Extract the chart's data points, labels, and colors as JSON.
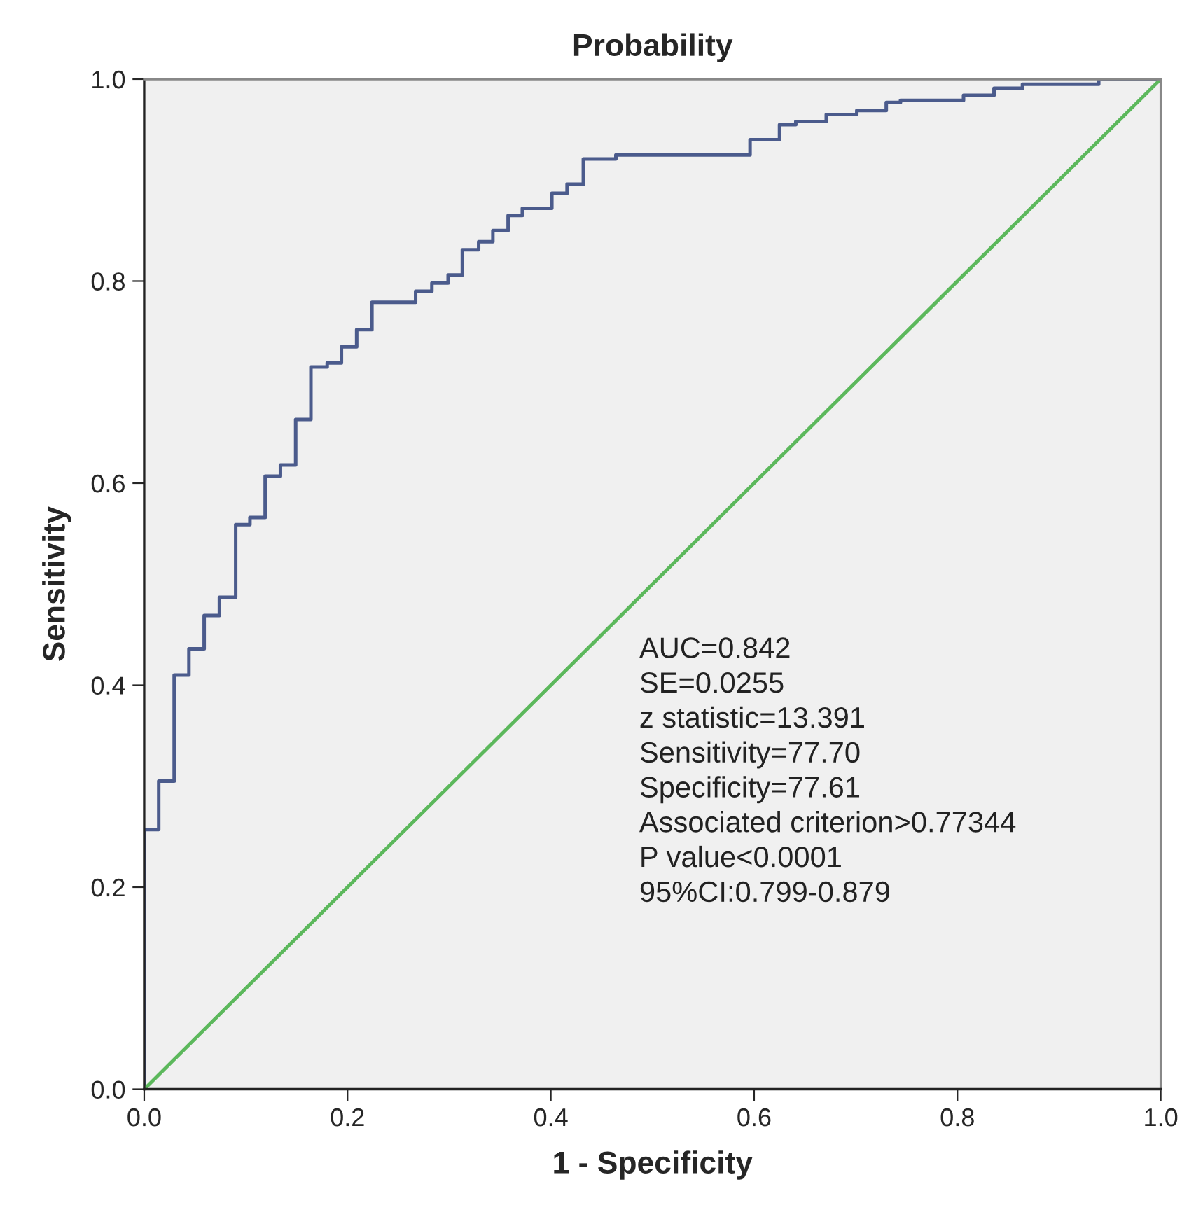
{
  "chart_data": {
    "type": "step",
    "title": "Probability",
    "xlabel": "1 - Specificity",
    "ylabel": "Sensitivity",
    "series": [
      {
        "color": "#4b5b8c",
        "x": [
          0,
          0,
          0.0143,
          0.0295,
          0.044,
          0.059,
          0.074,
          0.09,
          0.104,
          0.119,
          0.134,
          0.149,
          0.164,
          0.18,
          0.194,
          0.209,
          0.224,
          0.267,
          0.283,
          0.299,
          0.313,
          0.329,
          0.343,
          0.358,
          0.372,
          0.401,
          0.416,
          0.432,
          0.464,
          0.596,
          0.625,
          0.641,
          0.671,
          0.701,
          0.73,
          0.744,
          0.806,
          0.836,
          0.864,
          0.939,
          1.0
        ],
        "values": [
          0,
          0.257,
          0.305,
          0.41,
          0.436,
          0.469,
          0.487,
          0.559,
          0.566,
          0.607,
          0.618,
          0.663,
          0.715,
          0.719,
          0.735,
          0.752,
          0.779,
          0.79,
          0.798,
          0.806,
          0.831,
          0.839,
          0.85,
          0.865,
          0.872,
          0.887,
          0.896,
          0.921,
          0.925,
          0.94,
          0.955,
          0.958,
          0.965,
          0.969,
          0.977,
          0.979,
          0.984,
          0.991,
          0.995,
          1.0,
          1.0
        ]
      },
      {
        "type": "line",
        "color": "#5cb85c",
        "x": [
          0,
          1
        ],
        "values": [
          0,
          1
        ]
      }
    ],
    "xlim": [
      0,
      1
    ],
    "ylim": [
      0,
      1
    ],
    "xticks": [
      {
        "value": 0,
        "label": "0.0"
      },
      {
        "value": 0.2,
        "label": "0.2"
      },
      {
        "value": 0.4,
        "label": "0.4"
      },
      {
        "value": 0.6,
        "label": "0.6"
      },
      {
        "value": 0.8,
        "label": "0.8"
      },
      {
        "value": 1,
        "label": "1.0"
      }
    ],
    "yticks": [
      {
        "value": 0,
        "label": "0.0"
      },
      {
        "value": 0.2,
        "label": "0.2"
      },
      {
        "value": 0.4,
        "label": "0.4"
      },
      {
        "value": 0.6,
        "label": "0.6"
      },
      {
        "value": 0.8,
        "label": "0.8"
      },
      {
        "value": 1,
        "label": "1.0"
      }
    ],
    "annotations": [
      "AUC=0.842",
      "SE=0.0255",
      "z statistic=13.391",
      "Sensitivity=77.70",
      "Specificity=77.61",
      "Associated criterion>0.77344",
      "P value<0.0001",
      "95%CI:0.799-0.879"
    ],
    "grid": false,
    "legend": false,
    "marker": "none",
    "line_style": "solid"
  }
}
